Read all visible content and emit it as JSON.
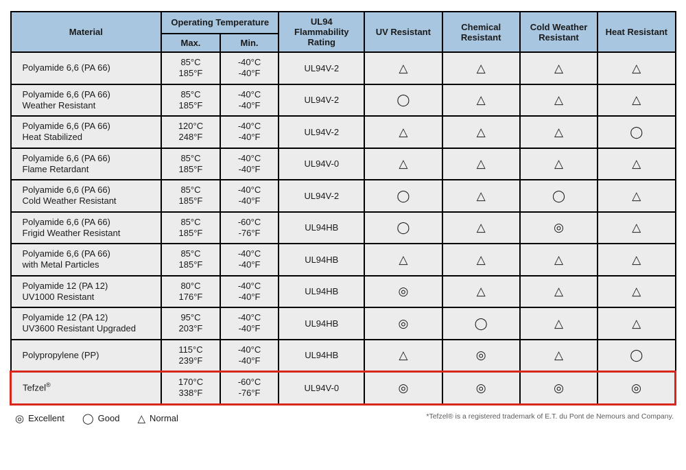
{
  "colors": {
    "header_bg": "#a8c6e0",
    "row_bg": "#ececec",
    "border": "#000000",
    "text": "#1a1a1a",
    "highlight_border": "#d9261c",
    "footnote": "#5b5b5b"
  },
  "typography": {
    "family": "Arial, Helvetica, sans-serif",
    "header_fontsize_pt": 10,
    "cell_fontsize_pt": 10,
    "symbol_fontsize_pt": 13,
    "legend_fontsize_pt": 10,
    "footnote_fontsize_pt": 8
  },
  "symbols": {
    "excellent": "◎",
    "good": "◯",
    "normal": "△"
  },
  "columns": {
    "material": "Material",
    "operating_temp": "Operating Temperature",
    "max": "Max.",
    "min": "Min.",
    "ul94": "UL94 Flammability Rating",
    "uv": "UV Resistant",
    "chemical": "Chemical Resistant",
    "cold": "Cold Weather Resistant",
    "heat": "Heat Resistant"
  },
  "rows": [
    {
      "material_l1": "Polyamide 6,6 (PA 66)",
      "material_l2": "",
      "max_c": "85°C",
      "max_f": "185°F",
      "min_c": "-40°C",
      "min_f": "-40°F",
      "ul": "UL94V-2",
      "uv": "normal",
      "chem": "normal",
      "cold": "normal",
      "heat": "normal",
      "highlight": false
    },
    {
      "material_l1": "Polyamide 6,6 (PA 66)",
      "material_l2": "Weather Resistant",
      "max_c": "85°C",
      "max_f": "185°F",
      "min_c": "-40°C",
      "min_f": "-40°F",
      "ul": "UL94V-2",
      "uv": "good",
      "chem": "normal",
      "cold": "normal",
      "heat": "normal",
      "highlight": false
    },
    {
      "material_l1": "Polyamide 6,6 (PA 66)",
      "material_l2": "Heat Stabilized",
      "max_c": "120°C",
      "max_f": "248°F",
      "min_c": "-40°C",
      "min_f": "-40°F",
      "ul": "UL94V-2",
      "uv": "normal",
      "chem": "normal",
      "cold": "normal",
      "heat": "good",
      "highlight": false
    },
    {
      "material_l1": "Polyamide 6,6 (PA 66)",
      "material_l2": "Flame Retardant",
      "max_c": "85°C",
      "max_f": "185°F",
      "min_c": "-40°C",
      "min_f": "-40°F",
      "ul": "UL94V-0",
      "uv": "normal",
      "chem": "normal",
      "cold": "normal",
      "heat": "normal",
      "highlight": false
    },
    {
      "material_l1": "Polyamide 6,6 (PA 66)",
      "material_l2": "Cold Weather Resistant",
      "max_c": "85°C",
      "max_f": "185°F",
      "min_c": "-40°C",
      "min_f": "-40°F",
      "ul": "UL94V-2",
      "uv": "good",
      "chem": "normal",
      "cold": "good",
      "heat": "normal",
      "highlight": false
    },
    {
      "material_l1": "Polyamide 6,6 (PA 66)",
      "material_l2": "Frigid Weather Resistant",
      "max_c": "85°C",
      "max_f": "185°F",
      "min_c": "-60°C",
      "min_f": "-76°F",
      "ul": "UL94HB",
      "uv": "good",
      "chem": "normal",
      "cold": "excellent",
      "heat": "normal",
      "highlight": false
    },
    {
      "material_l1": "Polyamide 6,6 (PA 66)",
      "material_l2": "with Metal Particles",
      "max_c": "85°C",
      "max_f": "185°F",
      "min_c": "-40°C",
      "min_f": "-40°F",
      "ul": "UL94HB",
      "uv": "normal",
      "chem": "normal",
      "cold": "normal",
      "heat": "normal",
      "highlight": false
    },
    {
      "material_l1": "Polyamide 12 (PA 12)",
      "material_l2": "UV1000 Resistant",
      "max_c": "80°C",
      "max_f": "176°F",
      "min_c": "-40°C",
      "min_f": "-40°F",
      "ul": "UL94HB",
      "uv": "excellent",
      "chem": "normal",
      "cold": "normal",
      "heat": "normal",
      "highlight": false
    },
    {
      "material_l1": "Polyamide 12 (PA 12)",
      "material_l2": "UV3600 Resistant Upgraded",
      "max_c": "95°C",
      "max_f": "203°F",
      "min_c": "-40°C",
      "min_f": "-40°F",
      "ul": "UL94HB",
      "uv": "excellent",
      "chem": "good",
      "cold": "normal",
      "heat": "normal",
      "highlight": false
    },
    {
      "material_l1": "Polypropylene (PP)",
      "material_l2": "",
      "max_c": "115°C",
      "max_f": "239°F",
      "min_c": "-40°C",
      "min_f": "-40°F",
      "ul": "UL94HB",
      "uv": "normal",
      "chem": "excellent",
      "cold": "normal",
      "heat": "good",
      "highlight": false
    },
    {
      "material_l1": "Tefzel®",
      "material_l2": "",
      "max_c": "170°C",
      "max_f": "338°F",
      "min_c": "-60°C",
      "min_f": "-76°F",
      "ul": "UL94V-0",
      "uv": "excellent",
      "chem": "excellent",
      "cold": "excellent",
      "heat": "excellent",
      "highlight": true
    }
  ],
  "legend": {
    "excellent": "Excellent",
    "good": "Good",
    "normal": "Normal"
  },
  "footnote": "*Tefzel® is a registered trademark of E.T. du Pont de Nemours and Company."
}
